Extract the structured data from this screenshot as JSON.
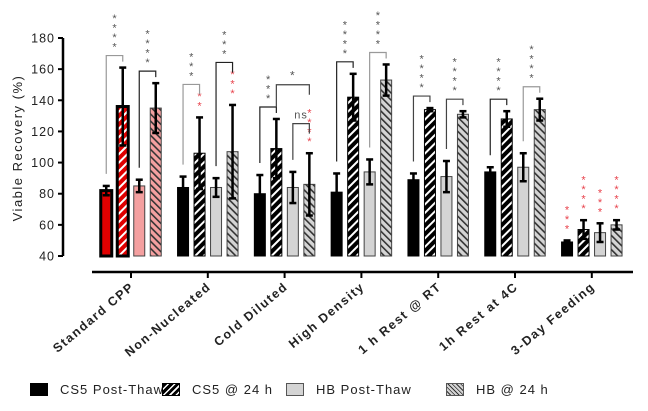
{
  "chart_data": {
    "type": "bar",
    "title": "",
    "xlabel": "",
    "ylabel": "Viable Recovery (%)",
    "ylim": [
      40,
      180
    ],
    "yticks": [
      40,
      60,
      80,
      100,
      120,
      140,
      160,
      180
    ],
    "grid": false,
    "legend_position": "bottom",
    "categories": [
      "Standard CPP",
      "Non-Nucleated",
      "Cold Diluted",
      "High Density",
      "1 h Rest @ RT",
      "1h Rest at 4C",
      "3-Day Feeding"
    ],
    "series": [
      {
        "name": "CS5 Post-Thaw",
        "pattern": "solid-black",
        "values": [
          82,
          84,
          80,
          81,
          89,
          94,
          49
        ],
        "errors": [
          3,
          7,
          12,
          12,
          4,
          3,
          1
        ]
      },
      {
        "name": "CS5 @ 24 h",
        "pattern": "black-hatched",
        "values": [
          136,
          106,
          109,
          142,
          134,
          128,
          57
        ],
        "errors": [
          25,
          23,
          19,
          15,
          1,
          5,
          6
        ]
      },
      {
        "name": "HB Post-Thaw",
        "pattern": "solid-lightgray",
        "values": [
          85,
          84,
          84,
          94,
          91,
          97,
          55
        ],
        "errors": [
          4,
          6,
          10,
          8,
          10,
          9,
          6
        ]
      },
      {
        "name": "HB @ 24 h",
        "pattern": "gray-hatched",
        "values": [
          135,
          107,
          86,
          153,
          131,
          134,
          60
        ],
        "errors": [
          16,
          30,
          20,
          10,
          2,
          7,
          3
        ]
      }
    ],
    "highlight": {
      "category": "Standard CPP",
      "colors": [
        "#e00000",
        "#e00000",
        "#f4a0a0",
        "#f4a0a0"
      ]
    },
    "annotations": {
      "brackets": [
        {
          "category": 0,
          "from": 0,
          "to": 1,
          "label": "****",
          "color": "#999999"
        },
        {
          "category": 0,
          "from": 2,
          "to": 3,
          "label": "****",
          "color": "#222222"
        },
        {
          "category": 1,
          "from": 0,
          "to": 1,
          "label": "***",
          "color": "#999999"
        },
        {
          "category": 1,
          "from": 2,
          "to": 3,
          "label": "***",
          "color": "#222222"
        },
        {
          "category": 2,
          "from": 0,
          "to": 1,
          "label": "***",
          "color": "#222222"
        },
        {
          "category": 2,
          "from": 1,
          "to": 3,
          "label": "*",
          "color": "#444444"
        },
        {
          "category": 2,
          "from": 2,
          "to": 3,
          "label": "ns",
          "color": "#444444"
        },
        {
          "category": 3,
          "from": 0,
          "to": 1,
          "label": "****",
          "color": "#222222"
        },
        {
          "category": 3,
          "from": 2,
          "to": 3,
          "label": "****",
          "color": "#999999"
        },
        {
          "category": 4,
          "from": 0,
          "to": 1,
          "label": "****",
          "color": "#444444"
        },
        {
          "category": 4,
          "from": 2,
          "to": 3,
          "label": "****",
          "color": "#444444"
        },
        {
          "category": 5,
          "from": 0,
          "to": 1,
          "label": "****",
          "color": "#222222"
        },
        {
          "category": 5,
          "from": 2,
          "to": 3,
          "label": "****",
          "color": "#999999"
        }
      ],
      "bar_marks": [
        {
          "category": 1,
          "bar": 1,
          "label": "**",
          "color": "#e8404a"
        },
        {
          "category": 1,
          "bar": 3,
          "label": "***",
          "color": "#e8404a"
        },
        {
          "category": 2,
          "bar": 3,
          "label": "****",
          "color": "#e8404a"
        },
        {
          "category": 6,
          "bar": 0,
          "label": "***",
          "color": "#e8404a"
        },
        {
          "category": 6,
          "bar": 1,
          "label": "****",
          "color": "#e8404a"
        },
        {
          "category": 6,
          "bar": 2,
          "label": "***",
          "color": "#e8404a"
        },
        {
          "category": 6,
          "bar": 3,
          "label": "****",
          "color": "#e8404a"
        }
      ]
    }
  },
  "legend": {
    "items": [
      {
        "label": "CS5 Post-Thaw"
      },
      {
        "label": "CS5 @ 24 h"
      },
      {
        "label": "HB Post-Thaw"
      },
      {
        "label": "HB @ 24 h"
      }
    ]
  }
}
